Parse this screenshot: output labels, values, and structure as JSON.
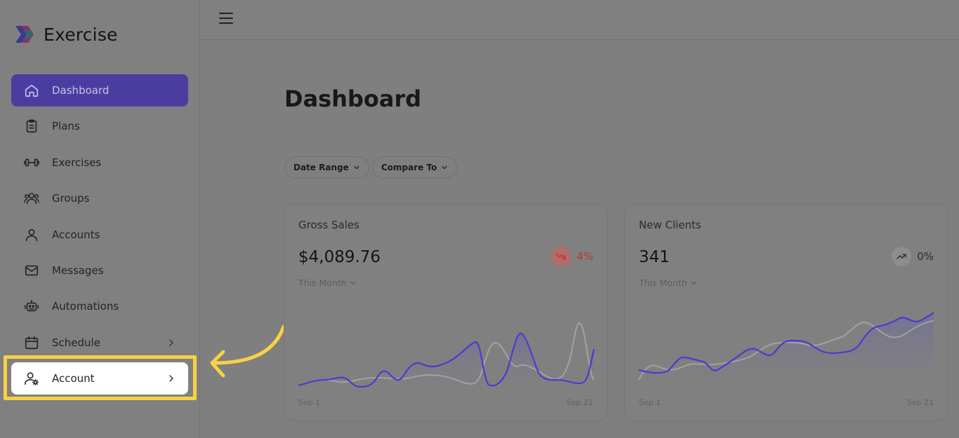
{
  "brand": {
    "name": "Exercise"
  },
  "sidebar": {
    "items": [
      {
        "label": "Dashboard",
        "icon": "home-icon",
        "active": true
      },
      {
        "label": "Plans",
        "icon": "clipboard-icon"
      },
      {
        "label": "Exercises",
        "icon": "dumbbell-icon"
      },
      {
        "label": "Groups",
        "icon": "users-icon"
      },
      {
        "label": "Accounts",
        "icon": "user-icon"
      },
      {
        "label": "Messages",
        "icon": "mail-icon"
      },
      {
        "label": "Automations",
        "icon": "robot-icon"
      },
      {
        "label": "Schedule",
        "icon": "calendar-icon"
      },
      {
        "label": "Account",
        "icon": "user-gear-icon"
      }
    ]
  },
  "main": {
    "title": "Dashboard",
    "filters": {
      "date_range": "Date Range",
      "compare_to": "Compare To"
    }
  },
  "cards": [
    {
      "title": "Gross Sales",
      "value": "$4,089.76",
      "period": "This Month",
      "trend_pct": "4%",
      "trend_direction": "down",
      "x_start": "Sep 1",
      "x_end": "Sep 21"
    },
    {
      "title": "New Clients",
      "value": "341",
      "period": "This Month",
      "trend_pct": "0%",
      "trend_direction": "up",
      "x_start": "Sep 1",
      "x_end": "Sep 21"
    }
  ],
  "colors": {
    "accent": "#4b3da0",
    "line_primary": "#4a3ccf",
    "line_secondary": "#9a9a9a",
    "trend_down": "#c0392b",
    "highlight": "#f8d145"
  }
}
